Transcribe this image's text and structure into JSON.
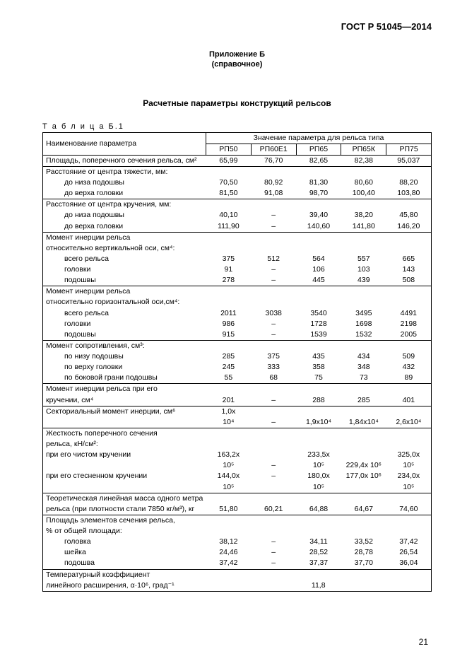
{
  "doc_code": "ГОСТ Р 51045—2014",
  "appendix_label": "Приложение Б",
  "appendix_type": "(справочное)",
  "main_title": "Расчетные параметры конструкций рельсов",
  "table_caption": "Т а б л и ц а  Б.1",
  "col_param_header": "Наименование параметра",
  "col_group_header": "Значение параметра для рельса типа",
  "cols": [
    "РП50",
    "РП60Е1",
    "РП65",
    "РП65К",
    "РП75"
  ],
  "groups": [
    {
      "rows": [
        {
          "label": "Площадь, поперечного сечения рельса, см²",
          "v": [
            "65,99",
            "76,70",
            "82,65",
            "82,38",
            "95,037"
          ]
        }
      ]
    },
    {
      "rows": [
        {
          "label": "Расстояние от центра тяжести, мм:",
          "v": [
            "",
            "",
            "",
            "",
            ""
          ]
        },
        {
          "label": "до низа подошвы",
          "indent": 1,
          "v": [
            "70,50",
            "80,92",
            "81,30",
            "80,60",
            "88,20"
          ]
        },
        {
          "label": "до верха головки",
          "indent": 1,
          "v": [
            "81,50",
            "91,08",
            "98,70",
            "100,40",
            "103,80"
          ]
        }
      ]
    },
    {
      "rows": [
        {
          "label": "Расстояние от центра кручения, мм:",
          "v": [
            "",
            "",
            "",
            "",
            ""
          ]
        },
        {
          "label": "до низа подошвы",
          "indent": 1,
          "v": [
            "40,10",
            "–",
            "39,40",
            "38,20",
            "45,80"
          ]
        },
        {
          "label": "до верха головки",
          "indent": 1,
          "v": [
            "111,90",
            "–",
            "140,60",
            "141,80",
            "146,20"
          ]
        }
      ]
    },
    {
      "rows": [
        {
          "label": "Момент инерции рельса",
          "v": [
            "",
            "",
            "",
            "",
            ""
          ]
        },
        {
          "label": "относительно вертикальной оси, см⁴:",
          "v": [
            "",
            "",
            "",
            "",
            ""
          ]
        },
        {
          "label": "всего рельса",
          "indent": 1,
          "v": [
            "375",
            "512",
            "564",
            "557",
            "665"
          ]
        },
        {
          "label": "головки",
          "indent": 1,
          "v": [
            "91",
            "–",
            "106",
            "103",
            "143"
          ]
        },
        {
          "label": "подошвы",
          "indent": 1,
          "v": [
            "278",
            "–",
            "445",
            "439",
            "508"
          ]
        }
      ]
    },
    {
      "rows": [
        {
          "label": "Момент инерции рельса",
          "v": [
            "",
            "",
            "",
            "",
            ""
          ]
        },
        {
          "label": "относительно горизонтальной оси,см⁴:",
          "v": [
            "",
            "",
            "",
            "",
            ""
          ]
        },
        {
          "label": "всего рельса",
          "indent": 1,
          "v": [
            "2011",
            "3038",
            "3540",
            "3495",
            "4491"
          ]
        },
        {
          "label": "головки",
          "indent": 1,
          "v": [
            "986",
            "–",
            "1728",
            "1698",
            "2198"
          ]
        },
        {
          "label": "подошвы",
          "indent": 1,
          "v": [
            "915",
            "–",
            "1539",
            "1532",
            "2005"
          ]
        }
      ]
    },
    {
      "rows": [
        {
          "label": "Момент сопротивления, см³:",
          "v": [
            "",
            "",
            "",
            "",
            ""
          ]
        },
        {
          "label": "по низу подошвы",
          "indent": 1,
          "v": [
            "285",
            "375",
            "435",
            "434",
            "509"
          ]
        },
        {
          "label": "по верху головки",
          "indent": 1,
          "v": [
            "245",
            "333",
            "358",
            "348",
            "432"
          ]
        },
        {
          "label": "по боковой грани подошвы",
          "indent": 1,
          "v": [
            "55",
            "68",
            "75",
            "73",
            "89"
          ]
        }
      ]
    },
    {
      "rows": [
        {
          "label": "Момент инерции рельса при его",
          "v": [
            "",
            "",
            "",
            "",
            ""
          ]
        },
        {
          "label": "кручении, см⁴",
          "v": [
            "201",
            "–",
            "288",
            "285",
            "401"
          ]
        }
      ]
    },
    {
      "rows": [
        {
          "label": "Секториальный момент инерции, см⁶",
          "v": [
            "1,0х",
            "",
            "",
            "",
            ""
          ]
        },
        {
          "label": "",
          "v": [
            "10⁴",
            "–",
            "1,9х10⁴",
            "1,84х10⁴",
            "2,6х10⁴"
          ]
        }
      ]
    },
    {
      "rows": [
        {
          "label": "Жесткость поперечного сечения",
          "v": [
            "",
            "",
            "",
            "",
            ""
          ]
        },
        {
          "label": "рельса, кН/см²:",
          "v": [
            "",
            "",
            "",
            "",
            ""
          ]
        },
        {
          "label": "при его чистом кручении",
          "v": [
            "163,2х",
            "",
            "233,5х",
            "",
            "325,0х"
          ]
        },
        {
          "label": "",
          "v": [
            "10⁵",
            "–",
            "10⁵",
            "229,4х 10⁶",
            "10⁵"
          ]
        },
        {
          "label": "при его стесненном кручении",
          "v": [
            "144,0х",
            "–",
            "180,0х",
            "177,0х 10⁶",
            "234,0х"
          ]
        },
        {
          "label": "",
          "v": [
            "10⁵",
            "",
            "10⁵",
            "",
            "10⁵"
          ]
        }
      ]
    },
    {
      "rows": [
        {
          "label": "Теоретическая линейная масса одного метра",
          "v": [
            "",
            "",
            "",
            "",
            ""
          ]
        },
        {
          "label": "рельса (при плотности стали 7850 кг/м³),  кг",
          "v": [
            "51,80",
            "60,21",
            "64,88",
            "64,67",
            "74,60"
          ]
        }
      ]
    },
    {
      "rows": [
        {
          "label": "Площадь элементов сечения рельса,",
          "v": [
            "",
            "",
            "",
            "",
            ""
          ]
        },
        {
          "label": "% от общей площади:",
          "v": [
            "",
            "",
            "",
            "",
            ""
          ]
        },
        {
          "label": "головка",
          "indent": 1,
          "v": [
            "38,12",
            "–",
            "34,11",
            "33,52",
            "37,42"
          ]
        },
        {
          "label": "шейка",
          "indent": 1,
          "v": [
            "24,46",
            "–",
            "28,52",
            "28,78",
            "26,54"
          ]
        },
        {
          "label": "подошва",
          "indent": 1,
          "v": [
            "37,42",
            "–",
            "37,37",
            "37,70",
            "36,04"
          ]
        }
      ]
    },
    {
      "rows": [
        {
          "label": "Температурный коэффициент",
          "v": [
            "",
            "",
            "",
            "",
            ""
          ]
        },
        {
          "label": "линейного расширения, α·10⁶, град⁻¹",
          "span": "11,8"
        }
      ]
    }
  ],
  "page_number": "21"
}
